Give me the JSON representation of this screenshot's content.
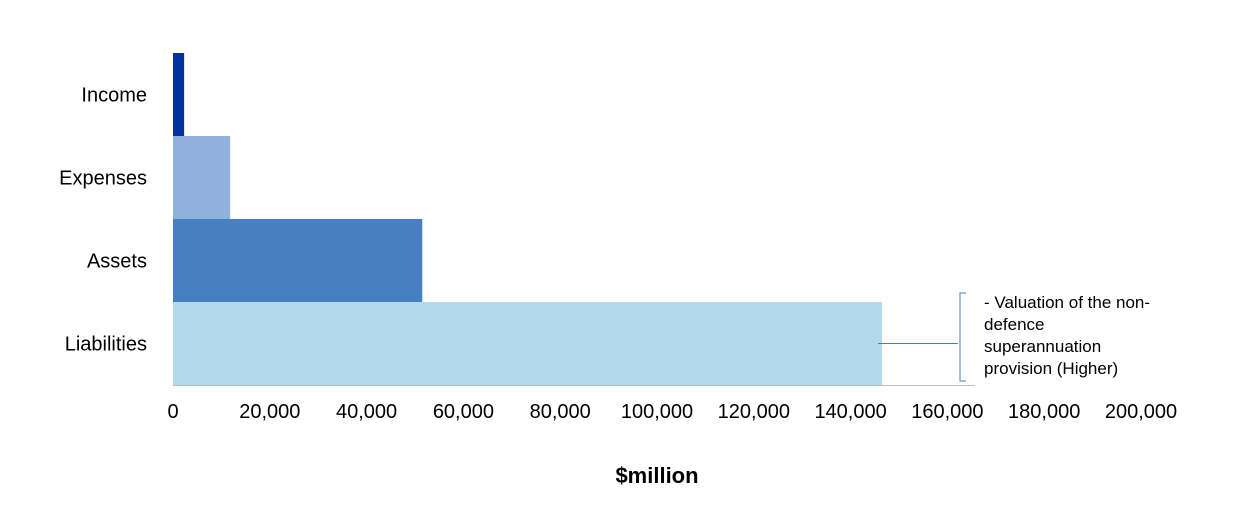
{
  "chart_data": {
    "type": "bar",
    "orientation": "horizontal",
    "categories": [
      "Income",
      "Expenses",
      "Assets",
      "Liabilities"
    ],
    "values": [
      2300,
      11800,
      51500,
      146500
    ],
    "colors": [
      "#0033a0",
      "#8fb1dc",
      "#4680c3",
      "#b3d9ec"
    ],
    "xlabel": "$million",
    "xlim": [
      0,
      200000
    ],
    "x_ticks": [
      "0",
      "20,000",
      "40,000",
      "60,000",
      "80,000",
      "100,000",
      "120,000",
      "140,000",
      "160,000",
      "180,000",
      "200,000"
    ],
    "grid": false,
    "annotation": {
      "target": "Liabilities",
      "lines": [
        "- Valuation of the non-",
        "defence",
        "superannuation",
        "provision (Higher)"
      ],
      "color": "#4680c3"
    }
  }
}
